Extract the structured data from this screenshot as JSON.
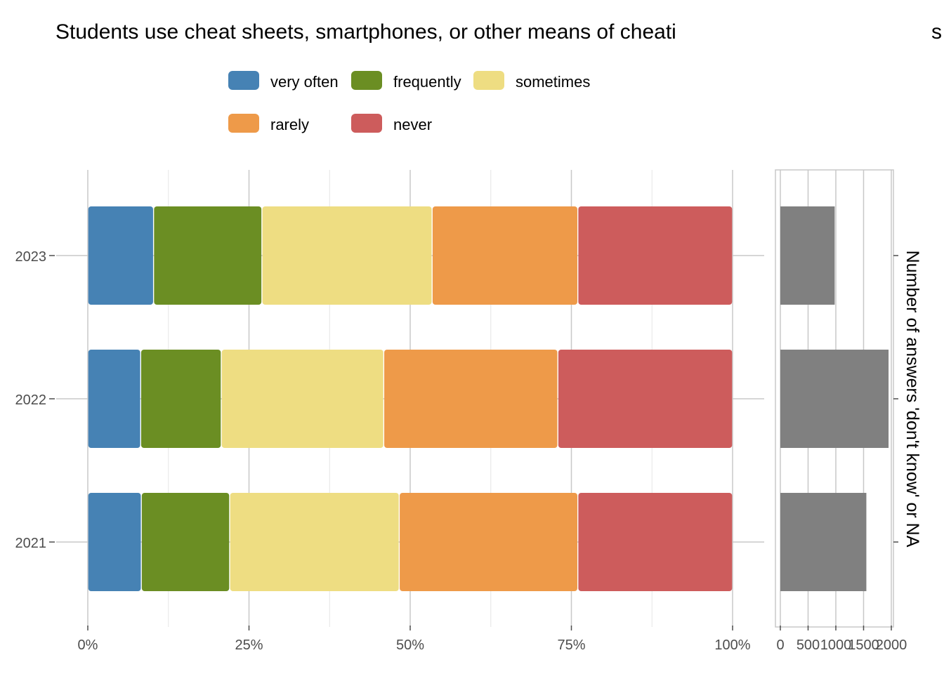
{
  "chart_data": {
    "type": "bar",
    "title": "Students use cheat sheets, smartphones, or other means of cheati",
    "title_tail": "s",
    "legend": {
      "placement": "top",
      "entries": [
        {
          "label": "very often",
          "color": "#4682b4"
        },
        {
          "label": "frequently",
          "color": "#6b8e23"
        },
        {
          "label": "sometimes",
          "color": "#eedd82"
        },
        {
          "label": "rarely",
          "color": "#ee9a49"
        },
        {
          "label": "never",
          "color": "#cd5c5c"
        }
      ]
    },
    "main_panel": {
      "stacked": true,
      "orientation": "horizontal",
      "categories": [
        "2023",
        "2022",
        "2021"
      ],
      "series": [
        {
          "name": "very often",
          "color": "#4682b4",
          "values": [
            10.2,
            8.2,
            8.3
          ]
        },
        {
          "name": "frequently",
          "color": "#6b8e23",
          "values": [
            16.8,
            12.5,
            13.7
          ]
        },
        {
          "name": "sometimes",
          "color": "#eedd82",
          "values": [
            26.4,
            25.2,
            26.3
          ]
        },
        {
          "name": "rarely",
          "color": "#ee9a49",
          "values": [
            22.6,
            27.0,
            27.7
          ]
        },
        {
          "name": "never",
          "color": "#cd5c5c",
          "values": [
            24.0,
            27.1,
            24.0
          ]
        }
      ],
      "xlim": [
        0,
        100
      ],
      "x_ticks": [
        0,
        25,
        50,
        75,
        100
      ],
      "x_tick_labels": [
        "0%",
        "25%",
        "50%",
        "75%",
        "100%"
      ],
      "grid": true
    },
    "side_panel": {
      "type": "bar",
      "orientation": "horizontal",
      "categories": [
        "2023",
        "2022",
        "2021"
      ],
      "values": [
        980,
        1950,
        1550
      ],
      "color": "#808080",
      "xlim": [
        0,
        2000
      ],
      "x_ticks": [
        0,
        500,
        1000,
        1500,
        2000
      ],
      "x_tick_labels": [
        "0",
        "500",
        "1000",
        "1500",
        "2000"
      ],
      "axis_label": "Number of answers 'don't know' or NA",
      "grid": true
    }
  }
}
